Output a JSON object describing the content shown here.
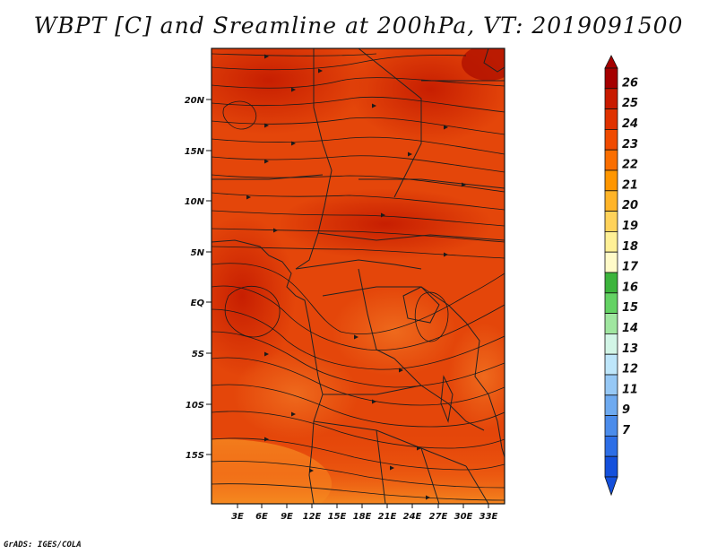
{
  "title": "WBPT [C] and Sreamline at 200hPa, VT: 2019091500",
  "credit": "GrADS: IGES/COLA",
  "map": {
    "lat_labels": [
      "20N",
      "15N",
      "10N",
      "5N",
      "EQ",
      "5S",
      "10S",
      "15S"
    ],
    "lon_labels": [
      "3E",
      "6E",
      "9E",
      "12E",
      "15E",
      "18E",
      "21E",
      "24E",
      "27E",
      "30E",
      "33E"
    ],
    "field": "WBPT",
    "units": "C",
    "level": "200hPa",
    "valid_time": "2019091500"
  },
  "colorbar": {
    "labels": [
      "26",
      "25",
      "24",
      "23",
      "22",
      "21",
      "20",
      "19",
      "18",
      "17",
      "16",
      "15",
      "14",
      "13",
      "12",
      "11",
      "9",
      "7"
    ],
    "colors": [
      "#a50000",
      "#c81a00",
      "#e03200",
      "#f04a00",
      "#fa6e00",
      "#ff9600",
      "#ffb428",
      "#ffd25a",
      "#fff096",
      "#fffac8",
      "#3cb43c",
      "#64d264",
      "#a0e6a0",
      "#d2f5e6",
      "#bee6fa",
      "#96c8f5",
      "#6eaaf0",
      "#4b8ceb",
      "#2d6ee6",
      "#1450dc"
    ]
  }
}
